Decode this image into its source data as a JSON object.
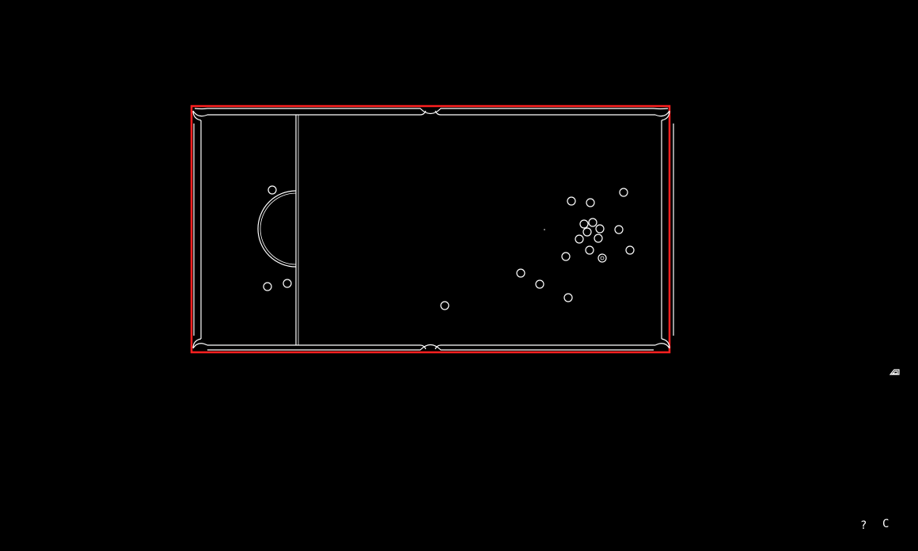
{
  "game": {
    "type": "pool",
    "colors": {
      "background": "#000000",
      "lines": "#ffffff",
      "table_highlight": "#ff0000"
    },
    "balls_on_table": 20
  },
  "controls": {
    "help_label": "?",
    "restart_label": "C",
    "help_icon": "question-mark-icon",
    "restart_icon": "restart-icon"
  }
}
